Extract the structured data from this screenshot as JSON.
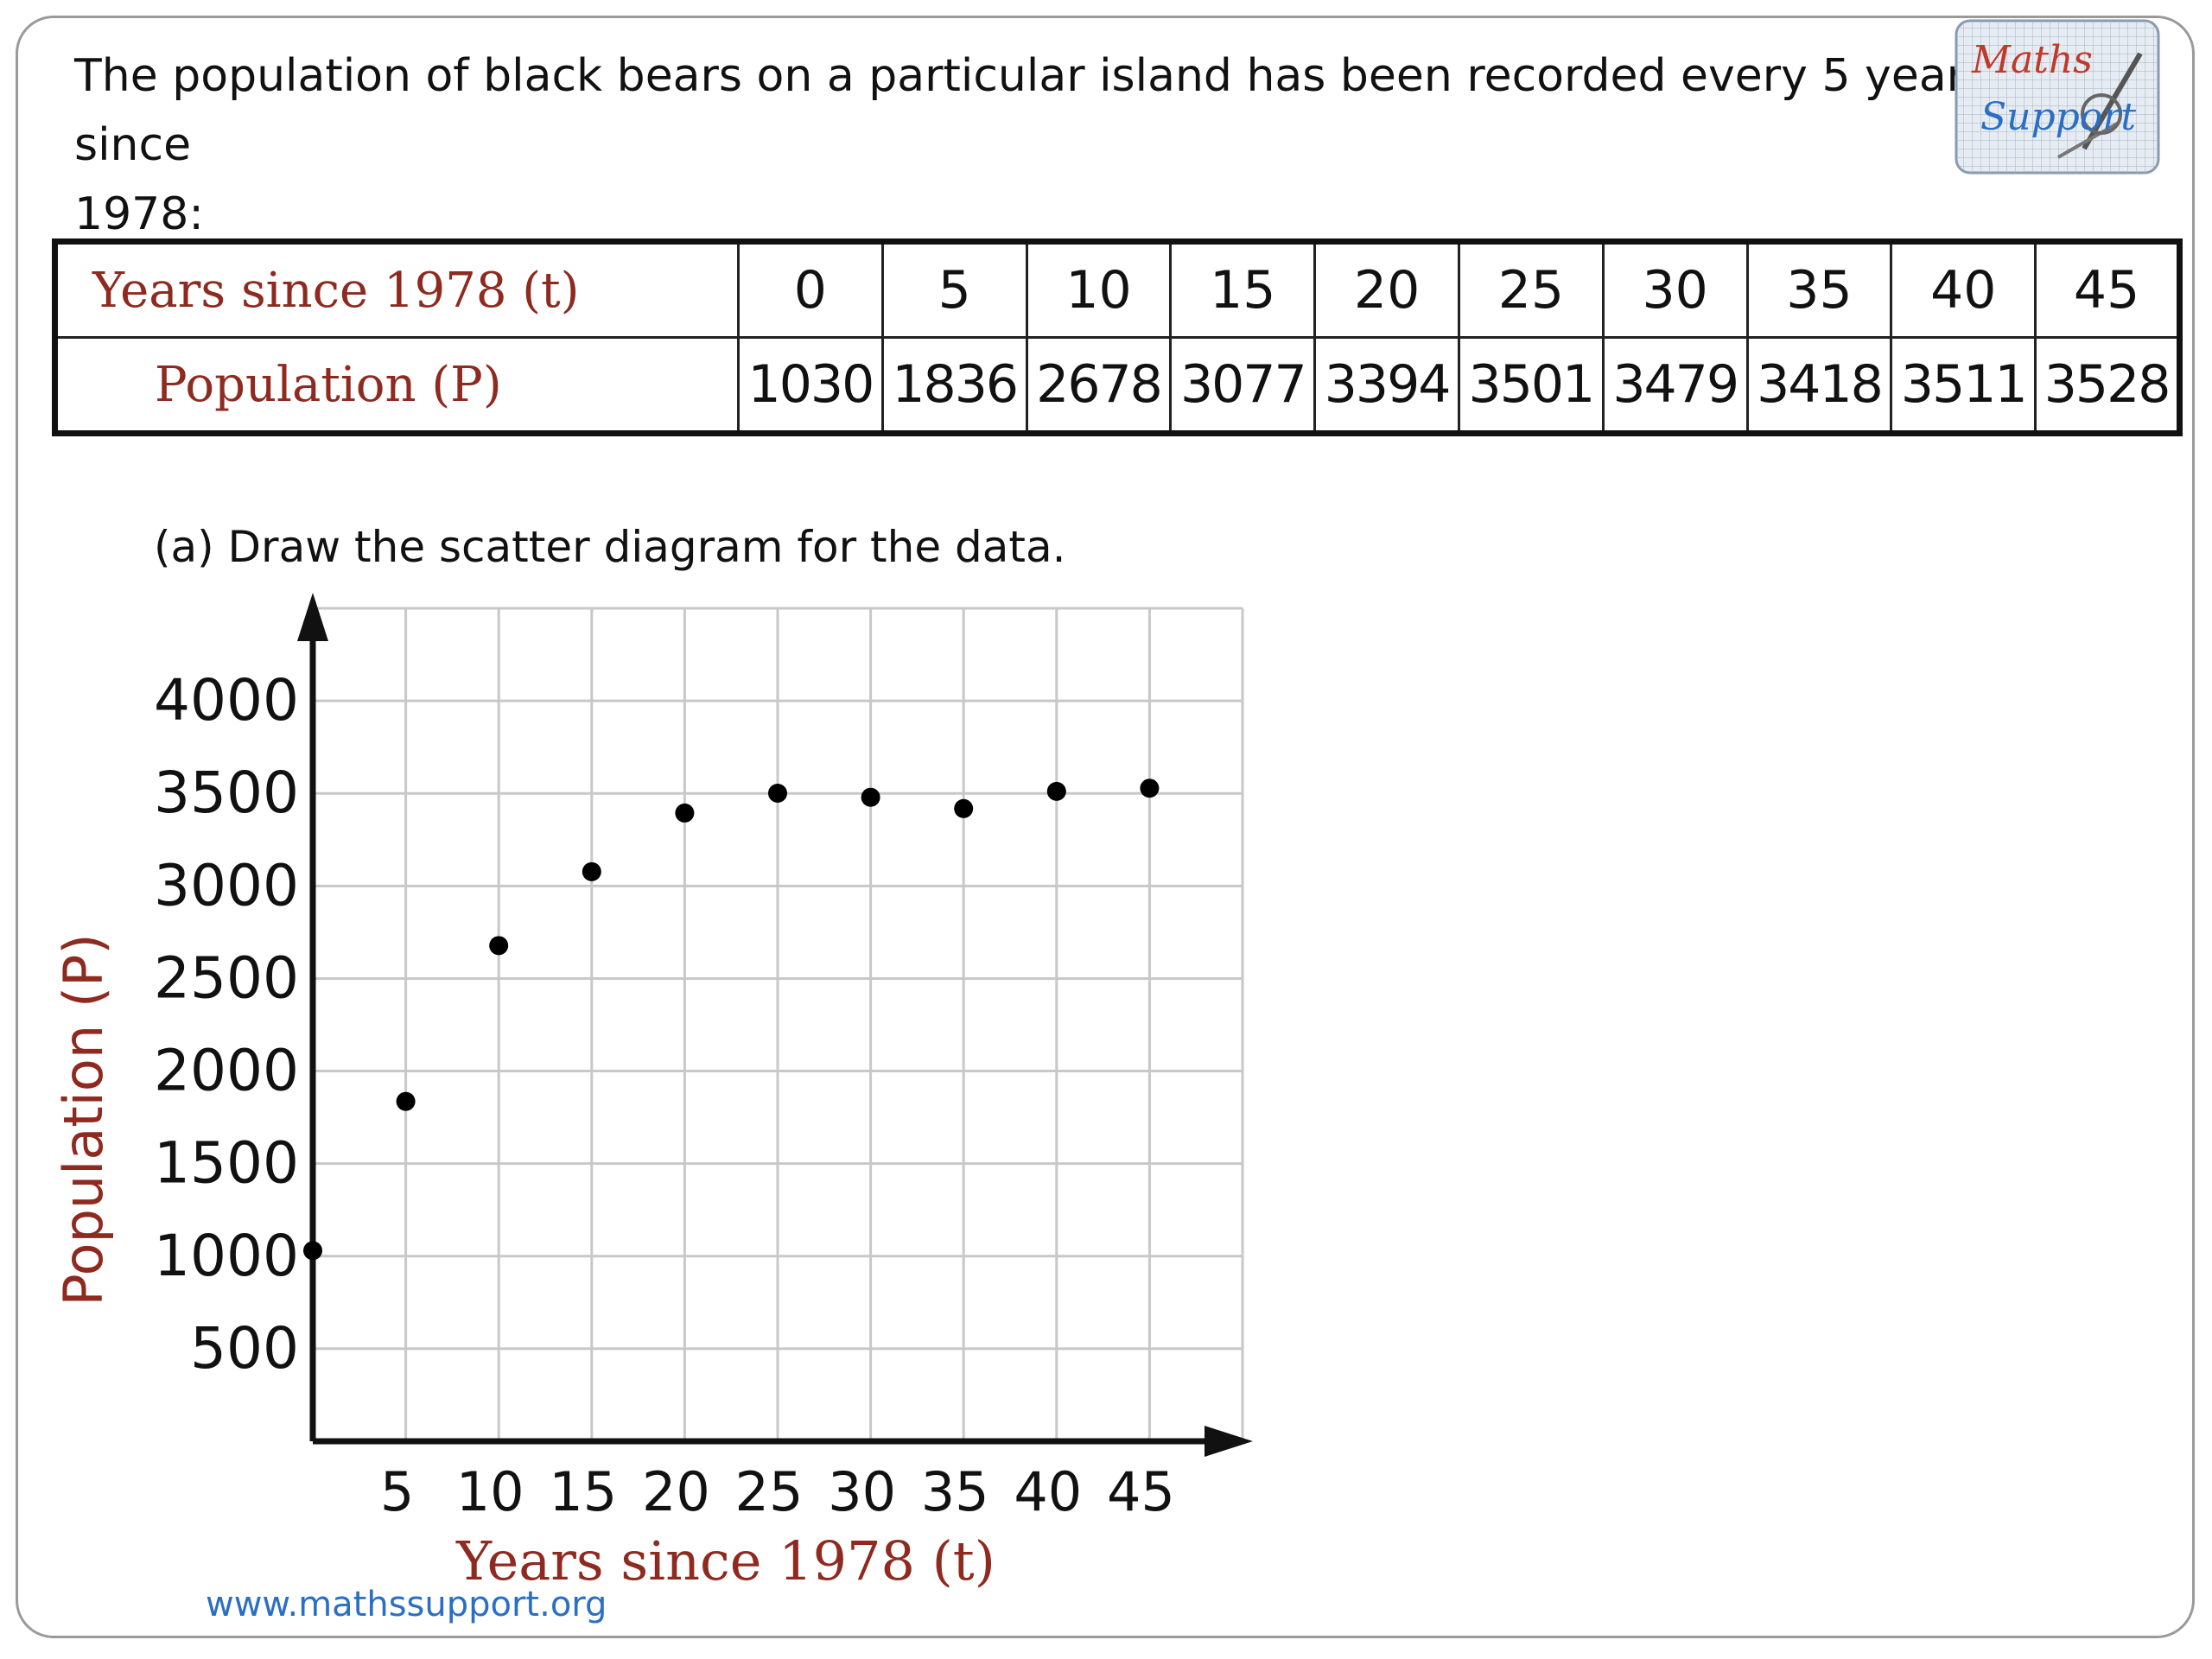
{
  "intro_line1": "The population of black bears on a particular island has been recorded every 5 years since",
  "intro_line2": "1978:",
  "table": {
    "row1_label": "Years since 1978 (t)",
    "row2_label": "Population (P)",
    "years": [
      "0",
      "5",
      "10",
      "15",
      "20",
      "25",
      "30",
      "35",
      "40",
      "45"
    ],
    "population": [
      "1030",
      "1836",
      "2678",
      "3077",
      "3394",
      "3501",
      "3479",
      "3418",
      "3511",
      "3528"
    ]
  },
  "question": "(a) Draw the scatter diagram for the data.",
  "footer_url": "www.mathssupport.org",
  "logo_text": "Maths Support",
  "colors": {
    "label_red": "#8e2a1f",
    "grid": "#c8c8c8",
    "axis": "#111111",
    "link_blue": "#2a6fc4"
  },
  "chart_data": {
    "type": "scatter",
    "xlabel": "Years since 1978 (t)",
    "ylabel": "Population (P)",
    "x": [
      0,
      5,
      10,
      15,
      20,
      25,
      30,
      35,
      40,
      45
    ],
    "y": [
      1030,
      1836,
      2678,
      3077,
      3394,
      3501,
      3479,
      3418,
      3511,
      3528
    ],
    "x_ticks": [
      5,
      10,
      15,
      20,
      25,
      30,
      35,
      40,
      45
    ],
    "y_ticks": [
      500,
      1000,
      1500,
      2000,
      2500,
      3000,
      3500,
      4000
    ],
    "xlim": [
      0,
      50
    ],
    "ylim": [
      0,
      4500
    ],
    "grid": true,
    "legend": "none"
  }
}
